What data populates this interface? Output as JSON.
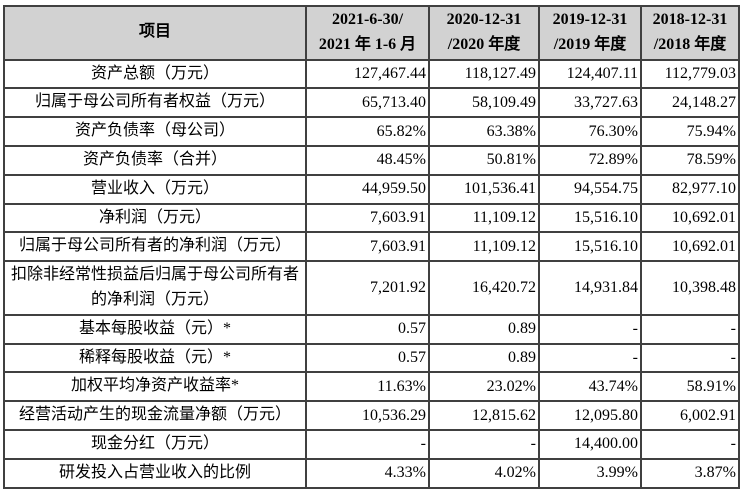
{
  "table": {
    "header": {
      "item_label": "项目",
      "period_columns": [
        {
          "line1": "2021-6-30/",
          "line2": "2021 年 1-6 月"
        },
        {
          "line1": "2020-12-31",
          "line2": "/2020 年度"
        },
        {
          "line1": "2019-12-31",
          "line2": "/2019 年度"
        },
        {
          "line1": "2018-12-31",
          "line2": "/2018 年度"
        }
      ]
    },
    "rows": [
      {
        "label": "资产总额（万元）",
        "values": [
          "127,467.44",
          "118,127.49",
          "124,407.11",
          "112,779.03"
        ]
      },
      {
        "label": "归属于母公司所有者权益（万元）",
        "values": [
          "65,713.40",
          "58,109.49",
          "33,727.63",
          "24,148.27"
        ]
      },
      {
        "label": "资产负债率（母公司）",
        "values": [
          "65.82%",
          "63.38%",
          "76.30%",
          "75.94%"
        ]
      },
      {
        "label": "资产负债率（合并）",
        "values": [
          "48.45%",
          "50.81%",
          "72.89%",
          "78.59%"
        ]
      },
      {
        "label": "营业收入（万元）",
        "values": [
          "44,959.50",
          "101,536.41",
          "94,554.75",
          "82,977.10"
        ]
      },
      {
        "label": "净利润（万元）",
        "values": [
          "7,603.91",
          "11,109.12",
          "15,516.10",
          "10,692.01"
        ]
      },
      {
        "label": "归属于母公司所有者的净利润（万元）",
        "values": [
          "7,603.91",
          "11,109.12",
          "15,516.10",
          "10,692.01"
        ]
      },
      {
        "label": "扣除非经常性损益后归属于母公司所有者的净利润（万元）",
        "values": [
          "7,201.92",
          "16,420.72",
          "14,931.84",
          "10,398.48"
        ]
      },
      {
        "label": "基本每股收益（元）*",
        "values": [
          "0.57",
          "0.89",
          "-",
          "-"
        ]
      },
      {
        "label": "稀释每股收益（元）*",
        "values": [
          "0.57",
          "0.89",
          "-",
          "-"
        ]
      },
      {
        "label": "加权平均净资产收益率*",
        "values": [
          "11.63%",
          "23.02%",
          "43.74%",
          "58.91%"
        ]
      },
      {
        "label": "经营活动产生的现金流量净额（万元）",
        "values": [
          "10,536.29",
          "12,815.62",
          "12,095.80",
          "6,002.91"
        ]
      },
      {
        "label": "现金分红（万元）",
        "values": [
          "-",
          "-",
          "14,400.00",
          "-"
        ]
      },
      {
        "label": "研发投入占营业收入的比例",
        "values": [
          "4.33%",
          "4.02%",
          "3.99%",
          "3.87%"
        ]
      }
    ]
  },
  "colors": {
    "header_bg": "#d2d2d2",
    "border": "#404040",
    "text": "#000000"
  }
}
